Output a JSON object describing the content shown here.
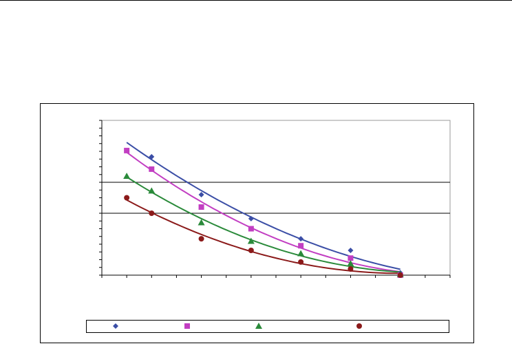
{
  "chart_data": {
    "type": "scatter",
    "trendline": "polynomial-2",
    "xlim": [
      0,
      14
    ],
    "xticks": [
      0,
      1,
      2,
      3,
      4,
      5,
      6,
      7,
      8,
      9,
      10,
      11,
      12,
      13,
      14
    ],
    "ylim": [
      0,
      20
    ],
    "yticks": [
      0,
      1,
      2,
      3,
      4,
      5,
      6,
      7,
      8,
      9,
      10,
      11,
      12,
      13,
      14,
      15,
      16,
      17,
      18,
      19,
      20
    ],
    "hlines": [
      8,
      12
    ],
    "series": [
      {
        "color": "#3b4ea6",
        "marker": "diamond",
        "x": [
          2,
          4,
          6,
          8,
          10,
          12
        ],
        "values": [
          15.3,
          10.4,
          7.3,
          4.7,
          3.2,
          0.3
        ]
      },
      {
        "color": "#c23ec2",
        "marker": "square",
        "x": [
          1,
          2,
          4,
          6,
          8,
          10,
          12
        ],
        "values": [
          16.1,
          13.7,
          8.8,
          6.0,
          3.8,
          2.2,
          0
        ]
      },
      {
        "color": "#2a8a3a",
        "marker": "triangle",
        "x": [
          1,
          2,
          4,
          6,
          8,
          10,
          12
        ],
        "values": [
          12.8,
          10.9,
          6.8,
          4.4,
          2.8,
          1.5,
          0.1
        ]
      },
      {
        "color": "#8b1a1a",
        "marker": "circle",
        "x": [
          1,
          2,
          4,
          6,
          8,
          10,
          12
        ],
        "values": [
          10.0,
          8.0,
          4.7,
          3.2,
          1.7,
          0.8,
          0
        ]
      }
    ]
  }
}
